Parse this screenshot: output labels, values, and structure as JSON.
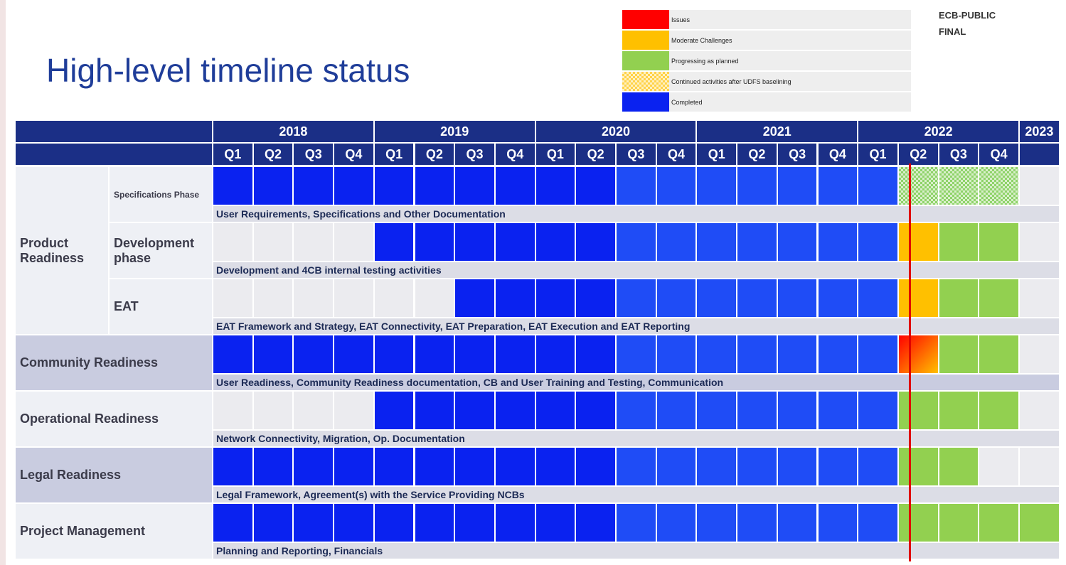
{
  "title": "High-level timeline status",
  "classification": [
    "ECB-PUBLIC",
    "FINAL"
  ],
  "legend": [
    {
      "label": "Issues",
      "color": "#ff0000"
    },
    {
      "label": "Moderate Challenges",
      "color": "#ffc000"
    },
    {
      "label": "Progressing as planned",
      "color": "#92d050"
    },
    {
      "label": "Continued activities after UDFS baselining",
      "color": "#ffd24a"
    },
    {
      "label": "Completed",
      "color": "#0a22f0"
    }
  ],
  "years": [
    {
      "label": "2018",
      "quarters": [
        "Q1",
        "Q2",
        "Q3",
        "Q4"
      ]
    },
    {
      "label": "2019",
      "quarters": [
        "Q1",
        "Q2",
        "Q3",
        "Q4"
      ]
    },
    {
      "label": "2020",
      "quarters": [
        "Q1",
        "Q2",
        "Q3",
        "Q4"
      ]
    },
    {
      "label": "2021",
      "quarters": [
        "Q1",
        "Q2",
        "Q3",
        "Q4"
      ]
    },
    {
      "label": "2022",
      "quarters": [
        "Q1",
        "Q2",
        "Q3",
        "Q4"
      ]
    },
    {
      "label": "2023",
      "quarters": []
    }
  ],
  "sections": [
    {
      "label": "Product Readiness",
      "rows": [
        {
          "label": "Specifications Phase",
          "description": "User Requirements, Specifications and Other Documentation",
          "cells": [
            4,
            4,
            4,
            4,
            4,
            4,
            4,
            4,
            4,
            4,
            4,
            4,
            4,
            4,
            4,
            4,
            4,
            3,
            3,
            3,
            null
          ]
        },
        {
          "label": "Development phase",
          "description": "Development and 4CB internal testing activities",
          "cells": [
            null,
            null,
            null,
            null,
            4,
            4,
            4,
            4,
            4,
            4,
            4,
            4,
            4,
            4,
            4,
            4,
            4,
            1,
            2,
            2,
            null
          ]
        },
        {
          "label": "EAT",
          "description": "EAT Framework and Strategy, EAT Connectivity, EAT Preparation, EAT Execution and EAT Reporting",
          "cells": [
            null,
            null,
            null,
            null,
            null,
            null,
            4,
            4,
            4,
            4,
            4,
            4,
            4,
            4,
            4,
            4,
            4,
            1,
            2,
            2,
            null
          ]
        }
      ]
    },
    {
      "label": "Community Readiness",
      "rows": [
        {
          "description": "User Readiness, Community Readiness documentation, CB and User Training and Testing, Communication",
          "cells": [
            4,
            4,
            4,
            4,
            4,
            4,
            4,
            4,
            4,
            4,
            4,
            4,
            4,
            4,
            4,
            4,
            4,
            [
              0,
              1
            ],
            2,
            2,
            null
          ]
        }
      ]
    },
    {
      "label": "Operational Readiness",
      "rows": [
        {
          "description": "Network Connectivity, Migration, Op. Documentation",
          "cells": [
            null,
            null,
            null,
            null,
            4,
            4,
            4,
            4,
            4,
            4,
            4,
            4,
            4,
            4,
            4,
            4,
            4,
            2,
            2,
            2,
            null
          ]
        }
      ]
    },
    {
      "label": "Legal Readiness",
      "rows": [
        {
          "description": "Legal Framework, Agreement(s) with the Service Providing NCBs",
          "cells": [
            4,
            4,
            4,
            4,
            4,
            4,
            4,
            4,
            4,
            4,
            4,
            4,
            4,
            4,
            4,
            4,
            4,
            2,
            2,
            null,
            null
          ]
        }
      ]
    },
    {
      "label": "Project Management",
      "rows": [
        {
          "description": "Planning and Reporting, Financials",
          "cells": [
            4,
            4,
            4,
            4,
            4,
            4,
            4,
            4,
            4,
            4,
            4,
            4,
            4,
            4,
            4,
            4,
            4,
            2,
            2,
            2,
            2
          ]
        }
      ]
    }
  ]
}
